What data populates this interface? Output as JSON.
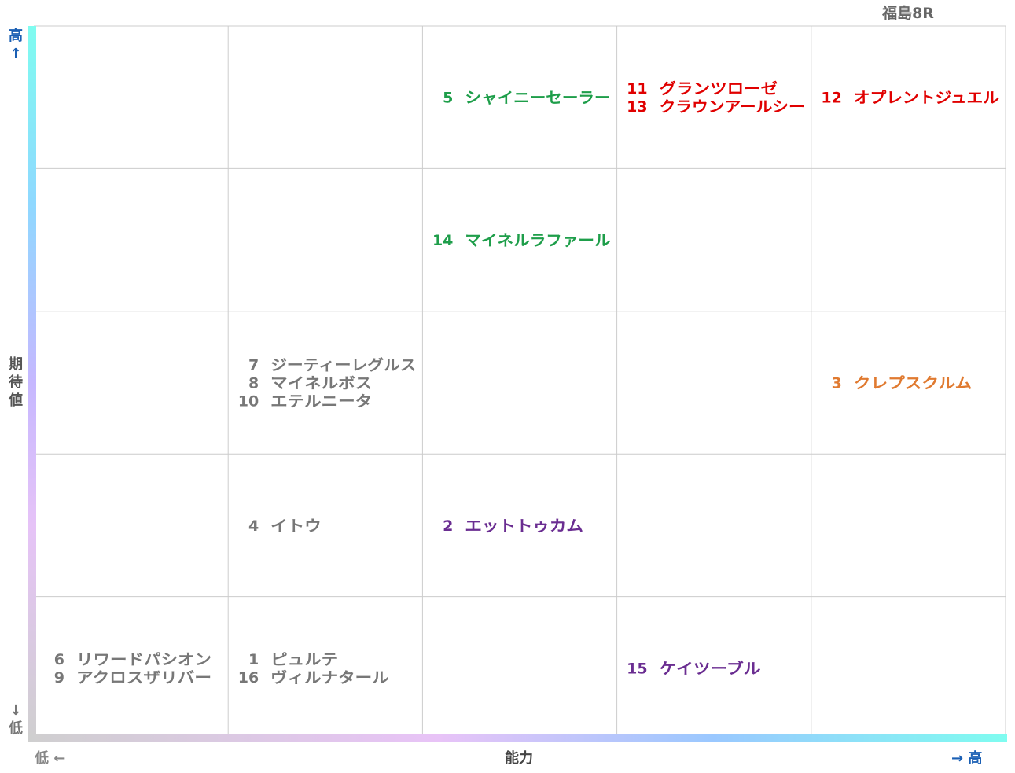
{
  "chart_data": {
    "type": "table",
    "title": "福島8R",
    "y_axis": {
      "high_label": "高↑",
      "label": "期待値",
      "low_label": "↓低"
    },
    "x_axis": {
      "low_label": "低 ←",
      "label": "能力",
      "high_label": "→ 高"
    },
    "grid": {
      "columns": 5,
      "rows": 5
    },
    "colors": {
      "green": "#1e9e4a",
      "red": "#e00000",
      "orange": "#e07a30",
      "purple": "#6a2d91",
      "gray": "#777777"
    },
    "cells": [
      {
        "ability": 3,
        "expectation": 5,
        "color": "green",
        "horses": [
          {
            "num": "5",
            "name": "シャイニーセーラー"
          }
        ]
      },
      {
        "ability": 4,
        "expectation": 5,
        "color": "red",
        "horses": [
          {
            "num": "11",
            "name": "グランツローゼ"
          },
          {
            "num": "13",
            "name": "クラウンアールシー"
          }
        ]
      },
      {
        "ability": 5,
        "expectation": 5,
        "color": "red",
        "horses": [
          {
            "num": "12",
            "name": "オプレントジュエル"
          }
        ]
      },
      {
        "ability": 3,
        "expectation": 4,
        "color": "green",
        "horses": [
          {
            "num": "14",
            "name": "マイネルラファール"
          }
        ]
      },
      {
        "ability": 2,
        "expectation": 3,
        "color": "gray",
        "horses": [
          {
            "num": "7",
            "name": "ジーティーレグルス"
          },
          {
            "num": "8",
            "name": "マイネルボス"
          },
          {
            "num": "10",
            "name": "エテルニータ"
          }
        ]
      },
      {
        "ability": 5,
        "expectation": 3,
        "color": "orange",
        "horses": [
          {
            "num": "3",
            "name": "クレプスクルム"
          }
        ]
      },
      {
        "ability": 2,
        "expectation": 2,
        "color": "gray",
        "horses": [
          {
            "num": "4",
            "name": "イトウ"
          }
        ]
      },
      {
        "ability": 3,
        "expectation": 2,
        "color": "purple",
        "horses": [
          {
            "num": "2",
            "name": "エットトゥカム"
          }
        ]
      },
      {
        "ability": 1,
        "expectation": 1,
        "color": "gray",
        "horses": [
          {
            "num": "6",
            "name": "リワードパシオン"
          },
          {
            "num": "9",
            "name": "アクロスザリバー"
          }
        ]
      },
      {
        "ability": 2,
        "expectation": 1,
        "color": "gray",
        "horses": [
          {
            "num": "1",
            "name": "ピュルテ"
          },
          {
            "num": "16",
            "name": "ヴィルナタール"
          }
        ]
      },
      {
        "ability": 4,
        "expectation": 1,
        "color": "purple",
        "horses": [
          {
            "num": "15",
            "name": "ケイツーブル"
          }
        ]
      }
    ]
  }
}
